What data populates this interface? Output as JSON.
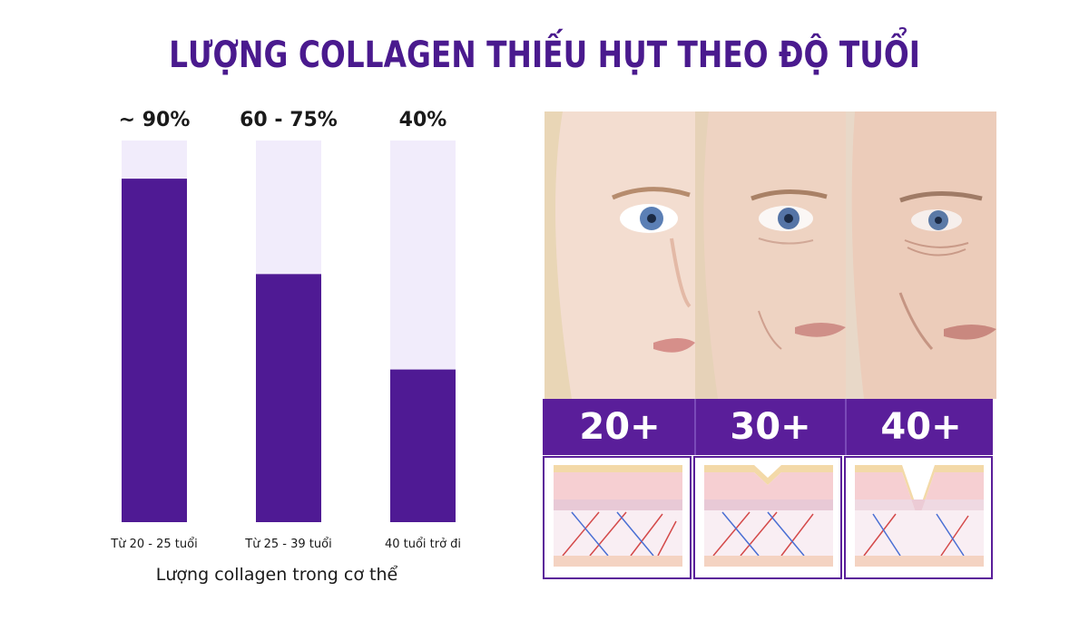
{
  "title": "LƯỢNG COLLAGEN THIẾU HỤT THEO ĐỘ TUỔI",
  "colors": {
    "bar_fill": "#4f1a94",
    "bar_track": "#f1ecfb",
    "title": "#4a1a8e",
    "age_band": "#5a1e9a"
  },
  "chart_data": {
    "type": "bar",
    "categories": [
      "Từ 20 - 25 tuổi",
      "Từ 25 - 39 tuổi",
      "40 tuổi trở đi"
    ],
    "values": [
      90,
      65,
      40
    ],
    "value_labels": [
      "~ 90%",
      "60 - 75%",
      "40%"
    ],
    "xlabel": "Lượng collagen trong cơ thể",
    "ylim": [
      0,
      100
    ]
  },
  "ages": [
    "20+",
    "30+",
    "40+"
  ],
  "icons": {
    "faces": "face-aging-photo",
    "skin": "skin-cross-section-illustration"
  }
}
